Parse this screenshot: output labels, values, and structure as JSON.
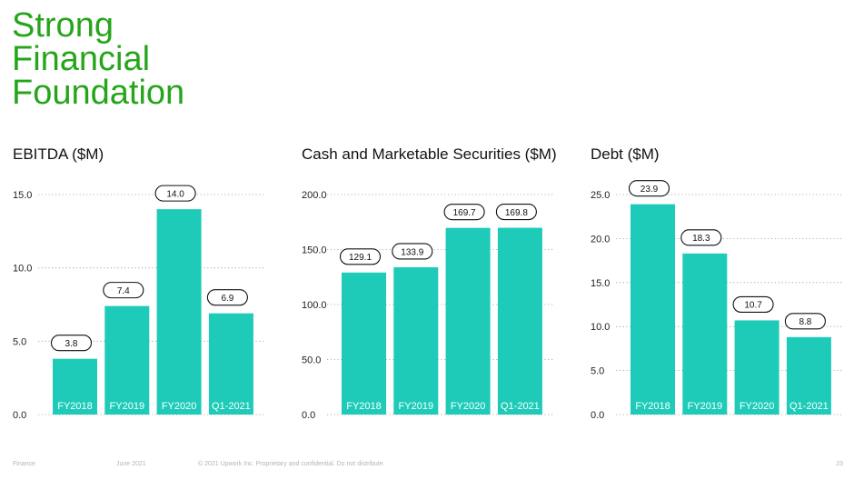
{
  "slide": {
    "title": "Strong\nFinancial\nFoundation",
    "accent_color": "#26a51a",
    "bar_color": "#1ecbb9"
  },
  "chart_data": [
    {
      "type": "bar",
      "title": "EBITDA ($M)",
      "categories": [
        "FY2018",
        "FY2019",
        "FY2020",
        "Q1-2021"
      ],
      "values": [
        3.8,
        7.4,
        14.0,
        6.9
      ],
      "value_labels": [
        "3.8",
        "7.4",
        "14.0",
        "6.9"
      ],
      "ylim": [
        0,
        15
      ],
      "yticks": [
        0,
        5,
        10,
        15
      ],
      "ytick_labels": [
        "0.0",
        "5.0",
        "10.0",
        "15.0"
      ],
      "grid": "dotted horizontal"
    },
    {
      "type": "bar",
      "title": "Cash and Marketable Securities ($M)",
      "categories": [
        "FY2018",
        "FY2019",
        "FY2020",
        "Q1-2021"
      ],
      "values": [
        129.1,
        133.9,
        169.7,
        169.8
      ],
      "value_labels": [
        "129.1",
        "133.9",
        "169.7",
        "169.8"
      ],
      "ylim": [
        0,
        200
      ],
      "yticks": [
        0,
        50,
        100,
        150,
        200
      ],
      "ytick_labels": [
        "0.0",
        "50.0",
        "100.0",
        "150.0",
        "200.0"
      ],
      "grid": "dotted horizontal"
    },
    {
      "type": "bar",
      "title": "Debt ($M)",
      "categories": [
        "FY2018",
        "FY2019",
        "FY2020",
        "Q1-2021"
      ],
      "values": [
        23.9,
        18.3,
        10.7,
        8.8
      ],
      "value_labels": [
        "23.9",
        "18.3",
        "10.7",
        "8.8"
      ],
      "ylim": [
        0,
        25
      ],
      "yticks": [
        0,
        5,
        10,
        15,
        20,
        25
      ],
      "ytick_labels": [
        "0.0",
        "5.0",
        "10.0",
        "15.0",
        "20.0",
        "25.0"
      ],
      "grid": "dotted horizontal"
    }
  ],
  "footer": {
    "section": "Finance",
    "date": "June 2021",
    "legal": "© 2021 Upwork Inc. Proprietary and confidential. Do not distribute.",
    "page": "23"
  }
}
